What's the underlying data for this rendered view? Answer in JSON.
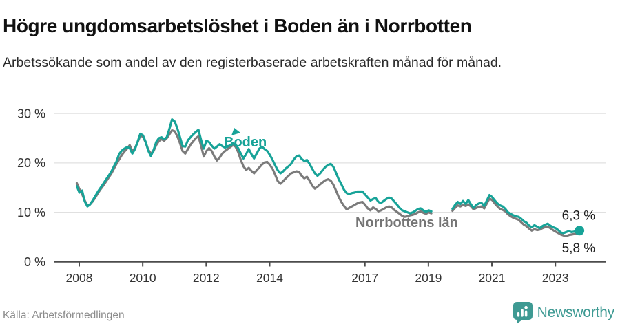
{
  "header": {
    "title": "Högre ungdomsarbetslöshet i Boden än i Norrbotten",
    "subtitle": "Arbetssökande som andel av den registerbaserade arbetskraften månad för månad."
  },
  "footer": {
    "source": "Källa: Arbetsförmedlingen",
    "brand": "Newsworthy",
    "logo_icon": "bar-chart-speech-bubble-icon"
  },
  "colors": {
    "accent_teal": "#17A398",
    "line_gray": "#7B7B7B",
    "grid": "#E0E0E0",
    "axis": "#4C4C4C",
    "logo_teal": "#3E9A93",
    "text_dark": "#111111"
  },
  "chart_data": {
    "type": "line",
    "title": "Högre ungdomsarbetslöshet i Boden än i Norrbotten",
    "subtitle": "Arbetssökande som andel av den registerbaserade arbetskraften månad för månad.",
    "x_start": {
      "year": 2008,
      "month": 1
    },
    "x_end": {
      "year": 2023,
      "month": 11
    },
    "x_tick_years": [
      2008,
      2010,
      2012,
      2014,
      2017,
      2019,
      2021,
      2023
    ],
    "y_ticks": [
      {
        "v": 0,
        "label": "0 %"
      },
      {
        "v": 10,
        "label": "10 %"
      },
      {
        "v": 20,
        "label": "20 %"
      },
      {
        "v": 30,
        "label": "30 %"
      }
    ],
    "ylim": [
      0,
      31
    ],
    "grid": true,
    "legend_position": "inline-labels",
    "data_gap": {
      "from": "2019-04",
      "to": "2019-10",
      "note": "no data plotted"
    },
    "series": [
      {
        "name": "Boden",
        "color": "#17A398",
        "end_label": "6,3 %",
        "end_dot": true,
        "values": [
          15.3,
          14.0,
          14.4,
          12.2,
          11.2,
          11.6,
          12.4,
          13.3,
          14.2,
          15.0,
          15.8,
          16.6,
          17.4,
          18.2,
          19.3,
          20.3,
          21.8,
          22.5,
          22.9,
          23.2,
          23.0,
          21.9,
          22.8,
          24.3,
          25.9,
          25.6,
          24.3,
          22.5,
          21.4,
          22.6,
          24.2,
          25.0,
          25.2,
          24.8,
          25.2,
          26.9,
          28.8,
          28.4,
          27.0,
          25.2,
          23.4,
          23.3,
          24.6,
          25.2,
          25.8,
          26.3,
          26.7,
          24.6,
          22.9,
          24.5,
          24.2,
          23.5,
          22.9,
          23.3,
          23.8,
          23.4,
          23.1,
          23.3,
          23.6,
          24.0,
          23.6,
          23.0,
          21.9,
          20.9,
          21.8,
          22.8,
          21.8,
          20.9,
          21.9,
          22.9,
          23.3,
          22.8,
          22.4,
          21.6,
          20.6,
          19.5,
          18.5,
          17.9,
          18.3,
          18.9,
          19.3,
          19.8,
          20.7,
          21.3,
          21.5,
          20.8,
          20.4,
          20.6,
          19.8,
          18.8,
          17.9,
          17.4,
          17.9,
          18.6,
          19.2,
          19.6,
          19.8,
          19.2,
          18.0,
          16.7,
          15.7,
          14.6,
          13.9,
          13.7,
          13.9,
          14.0,
          14.2,
          14.2,
          14.2,
          13.6,
          13.0,
          12.4,
          12.7,
          12.9,
          12.1,
          11.9,
          12.3,
          12.7,
          13.0,
          12.8,
          12.2,
          11.6,
          10.9,
          10.4,
          10.2,
          10.0,
          9.8,
          10.0,
          10.3,
          10.7,
          10.8,
          10.4,
          10.1,
          10.4,
          10.2,
          null,
          null,
          null,
          null,
          null,
          null,
          null,
          10.7,
          11.5,
          12.1,
          11.7,
          12.3,
          11.7,
          12.5,
          11.6,
          10.9,
          11.5,
          11.8,
          11.9,
          11.3,
          12.4,
          13.5,
          13.1,
          12.4,
          11.8,
          11.4,
          11.2,
          10.7,
          10.0,
          9.7,
          9.4,
          9.2,
          9.1,
          8.7,
          8.2,
          7.9,
          7.3,
          7.0,
          7.4,
          7.1,
          6.8,
          7.2,
          7.5,
          7.7,
          7.3,
          7.0,
          6.8,
          6.4,
          5.9,
          5.8,
          6.0,
          6.2,
          6.0,
          6.1,
          6.2,
          6.3
        ]
      },
      {
        "name": "Norrbottens län",
        "color": "#7B7B7B",
        "end_label": "5,8 %",
        "end_dot": false,
        "values": [
          15.9,
          14.7,
          13.7,
          12.4,
          11.4,
          11.6,
          12.2,
          13.0,
          13.9,
          14.7,
          15.4,
          16.2,
          17.0,
          17.8,
          18.8,
          19.8,
          20.7,
          21.6,
          22.3,
          22.9,
          23.6,
          22.4,
          23.0,
          24.2,
          25.5,
          25.3,
          24.2,
          22.7,
          21.9,
          22.4,
          23.6,
          24.4,
          24.8,
          24.5,
          25.0,
          25.8,
          26.6,
          26.4,
          25.4,
          24.0,
          22.4,
          21.9,
          22.8,
          23.7,
          24.4,
          25.0,
          25.4,
          23.4,
          21.3,
          22.4,
          23.0,
          22.4,
          21.3,
          20.5,
          21.1,
          21.9,
          22.4,
          22.8,
          23.2,
          23.6,
          23.3,
          22.2,
          20.6,
          19.3,
          18.6,
          19.0,
          18.4,
          17.9,
          18.5,
          19.1,
          19.7,
          20.1,
          20.2,
          19.6,
          18.8,
          17.6,
          16.3,
          15.8,
          16.3,
          16.9,
          17.4,
          17.9,
          18.1,
          18.3,
          18.2,
          17.4,
          16.9,
          17.2,
          16.4,
          15.4,
          14.8,
          15.2,
          15.7,
          16.1,
          16.5,
          16.7,
          16.4,
          15.6,
          14.4,
          13.1,
          12.1,
          11.3,
          10.6,
          10.9,
          11.2,
          11.5,
          11.8,
          12.0,
          12.1,
          11.5,
          10.8,
          10.4,
          11.0,
          10.7,
          10.2,
          10.4,
          10.7,
          11.0,
          11.2,
          11.0,
          10.5,
          10.1,
          9.7,
          9.3,
          9.1,
          9.2,
          9.4,
          9.5,
          9.7,
          10.0,
          10.2,
          9.9,
          9.7,
          10.0,
          9.8,
          null,
          null,
          null,
          null,
          null,
          null,
          null,
          10.3,
          10.9,
          11.4,
          11.2,
          11.5,
          11.3,
          11.6,
          11.2,
          10.6,
          10.9,
          11.1,
          11.2,
          10.8,
          11.8,
          12.8,
          12.5,
          11.8,
          11.2,
          10.7,
          10.5,
          10.2,
          9.6,
          9.2,
          8.9,
          8.7,
          8.5,
          8.0,
          7.5,
          7.2,
          6.7,
          6.3,
          6.6,
          6.4,
          6.5,
          6.8,
          7.0,
          7.1,
          6.8,
          6.4,
          6.1,
          5.8,
          5.5,
          5.3,
          5.2,
          5.4,
          5.5,
          5.6,
          5.7,
          5.8
        ]
      }
    ]
  }
}
